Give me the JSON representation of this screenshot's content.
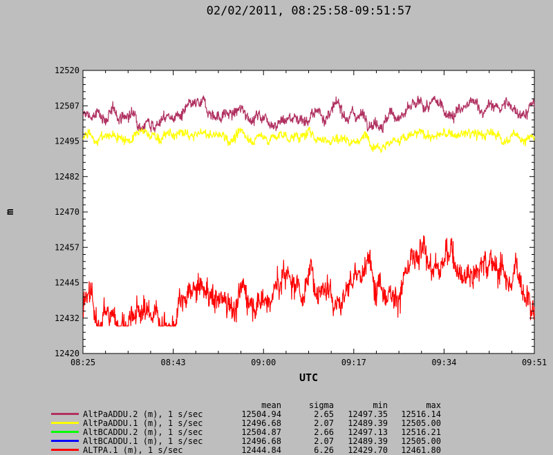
{
  "header": {
    "title": "02/02/2011, 08:25:58-09:51:57"
  },
  "chart_data": {
    "type": "line",
    "xlabel": "UTC",
    "ylabel": "m",
    "x_ticks": [
      "08:25",
      "08:43",
      "09:00",
      "09:17",
      "09:34",
      "09:51"
    ],
    "y_ticks": [
      "12520",
      "12507",
      "12495",
      "12482",
      "12470",
      "12457",
      "12445",
      "12432",
      "12420"
    ],
    "ylim": [
      12420,
      12520
    ],
    "xlim": [
      "08:25:58",
      "09:51:57"
    ],
    "grid": false,
    "legend_position": "bottom",
    "stats_headers": [
      "mean",
      "sigma",
      "min",
      "max"
    ],
    "series": [
      {
        "name": "AltPaADDU.2 (m), 1 s/sec",
        "color": "#b03060",
        "mean": "12504.94",
        "sigma": "2.65",
        "min": "12497.35",
        "max": "12516.14",
        "trend": [
          12503.5,
          12504.2,
          12504.6,
          12504.5,
          12505.0,
          12505.3,
          12506.2,
          12507.0
        ]
      },
      {
        "name": "AltPaADDU.1 (m), 1 s/sec",
        "color": "#ffff00",
        "mean": "12496.68",
        "sigma": "2.07",
        "min": "12489.39",
        "max": "12505.00",
        "trend": [
          12496.6,
          12496.7,
          12496.5,
          12496.8,
          12496.6,
          12496.7,
          12496.8,
          12496.6
        ]
      },
      {
        "name": "AltBCADDU.2 (m), 1 s/sec",
        "color": "#00ff00",
        "mean": "12504.87",
        "sigma": "2.66",
        "min": "12497.13",
        "max": "12516.21",
        "trend": []
      },
      {
        "name": "AltBCADDU.1 (m), 1 s/sec",
        "color": "#0000ff",
        "mean": "12496.68",
        "sigma": "2.07",
        "min": "12489.39",
        "max": "12505.00",
        "trend": []
      },
      {
        "name": "ALTPA.1 (m), 1 s/sec",
        "color": "#ff0000",
        "mean": "12444.84",
        "sigma": "6.26",
        "min": "12429.70",
        "max": "12461.80",
        "trend": [
          12434.0,
          12433.5,
          12436.0,
          12441.0,
          12446.0,
          12448.5,
          12448.0,
          12451.5,
          12455.0,
          12443.0
        ]
      }
    ]
  }
}
